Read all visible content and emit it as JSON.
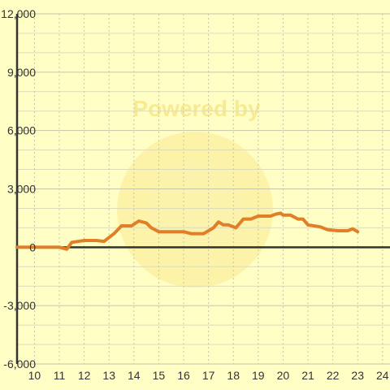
{
  "chart_data": {
    "type": "line",
    "title": "",
    "xlabel": "",
    "ylabel": "",
    "xlim": [
      10,
      24
    ],
    "ylim": [
      -6000,
      12000
    ],
    "x_ticks": [
      "10",
      "11",
      "12",
      "13",
      "14",
      "15",
      "16",
      "17",
      "18",
      "19",
      "20",
      "21",
      "22",
      "23",
      "24"
    ],
    "y_ticks": [
      "12,000",
      "9,000",
      "6,000",
      "3,000",
      "0",
      "-3,000",
      "-6,000"
    ],
    "y_tick_values": [
      12000,
      9000,
      6000,
      3000,
      0,
      -3000,
      -6000
    ],
    "grid": true,
    "watermark": "Powered by",
    "colors": {
      "background": "#ffffc5",
      "series": "#e07f27",
      "grid": "#c9c9a8",
      "axis": "#333333",
      "watermark": "#f4d96a"
    },
    "series": [
      {
        "x": [
          9.3,
          10.0,
          10.5,
          11.0,
          11.3,
          11.5,
          12.0,
          12.5,
          12.8,
          13.2,
          13.5,
          13.9,
          14.2,
          14.5,
          14.7,
          15.0,
          15.5,
          16.0,
          16.3,
          16.8,
          17.2,
          17.4,
          17.6,
          17.8,
          18.1,
          18.4,
          18.7,
          19.0,
          19.5,
          19.7,
          19.9,
          20.0,
          20.3,
          20.6,
          20.8,
          21.0,
          21.5,
          21.8,
          22.2,
          22.6,
          22.8,
          23.0
        ],
        "y": [
          0,
          0,
          0,
          0,
          -100,
          250,
          350,
          350,
          300,
          700,
          1100,
          1100,
          1350,
          1250,
          1000,
          800,
          800,
          800,
          700,
          700,
          1000,
          1300,
          1150,
          1150,
          1000,
          1450,
          1450,
          1600,
          1600,
          1700,
          1750,
          1650,
          1650,
          1450,
          1450,
          1150,
          1050,
          900,
          850,
          850,
          950,
          800
        ]
      }
    ]
  }
}
